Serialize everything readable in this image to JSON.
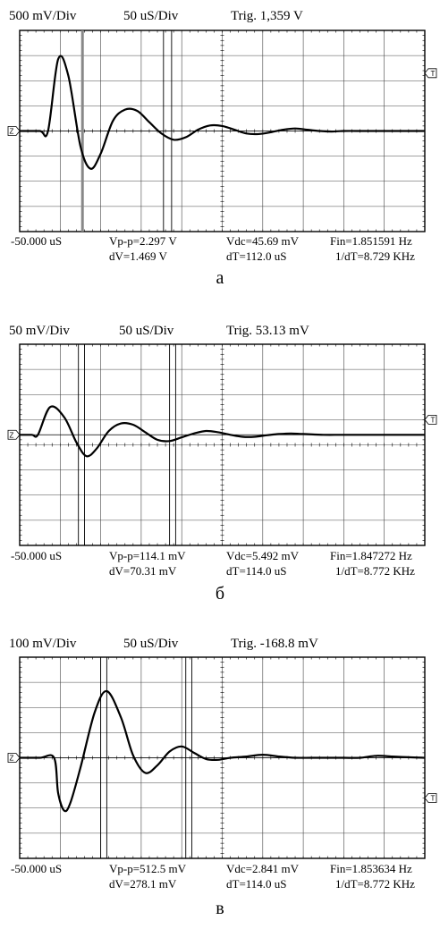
{
  "panels": [
    {
      "id": "a",
      "letter": "а",
      "volts_div": "500 mV/Div",
      "time_div": "50 uS/Div",
      "trig": "Trig. 1,359 V",
      "offset": "-50.000 uS",
      "vpp": "Vp-p=2.297 V",
      "dv": "dV=1.469 V",
      "vdc": "Vdc=45.69 mV",
      "dt": "dT=112.0 uS",
      "fin": "Fin=1.851591 Hz",
      "inv_dt": "1/dT=8.729 KHz",
      "ground_marker": "Z",
      "trigger_marker": "T",
      "divisions_x": 10,
      "divisions_y": 8,
      "zero_div": 4,
      "trigger_div": 1.7,
      "cursors_x_div": [
        1.55,
        3.55,
        3.75
      ]
    },
    {
      "id": "b",
      "letter": "б",
      "volts_div": "50 mV/Div",
      "time_div": "50 uS/Div",
      "trig": "Trig. 53.13 mV",
      "offset": "-50.000 uS",
      "vpp": "Vp-p=114.1 mV",
      "dv": "dV=70.31 mV",
      "vdc": "Vdc=5.492 mV",
      "dt": "dT=114.0 uS",
      "fin": "Fin=1.847272 Hz",
      "inv_dt": "1/dT=8.772 KHz",
      "ground_marker": "Z",
      "trigger_marker": "T",
      "divisions_x": 10,
      "divisions_y": 8,
      "zero_div": 3.6,
      "trigger_div": 3.0,
      "cursors_x_div": [
        1.45,
        1.6,
        3.7,
        3.85
      ]
    },
    {
      "id": "c",
      "letter": "в",
      "volts_div": "100 mV/Div",
      "time_div": "50 uS/Div",
      "trig": "Trig. -168.8 mV",
      "offset": "-50.000 uS",
      "vpp": "Vp-p=512.5 mV",
      "dv": "dV=278.1 mV",
      "vdc": "Vdc=2.841 mV",
      "dt": "dT=114.0 uS",
      "fin": "Fin=1.853634 Hz",
      "inv_dt": "1/dT=8.772 KHz",
      "ground_marker": "Z",
      "trigger_marker": "T",
      "divisions_x": 10,
      "divisions_y": 8,
      "zero_div": 4,
      "trigger_div": 5.6,
      "cursors_x_div": [
        2.0,
        2.15,
        4.1,
        4.25
      ]
    }
  ],
  "chart_data": [
    {
      "type": "line",
      "x_unit": "div",
      "y_unit": "div",
      "xlim": [
        0,
        10
      ],
      "ylim": [
        -4,
        4
      ],
      "grid": true,
      "series": [
        {
          "x": [
            0,
            0.5,
            0.7,
            0.95,
            1.2,
            1.5,
            1.75,
            2.0,
            2.3,
            2.6,
            2.9,
            3.2,
            3.5,
            3.8,
            4.1,
            4.4,
            4.7,
            5.0,
            5.3,
            5.6,
            5.9,
            6.2,
            6.5,
            6.8,
            7.1,
            7.4,
            7.7,
            8.0,
            8.5,
            9.0,
            9.5,
            10
          ],
          "y": [
            0,
            0,
            0,
            2.85,
            2.2,
            -0.6,
            -1.5,
            -0.9,
            0.4,
            0.85,
            0.8,
            0.35,
            -0.1,
            -0.35,
            -0.25,
            0.05,
            0.22,
            0.2,
            0.05,
            -0.1,
            -0.12,
            -0.05,
            0.05,
            0.1,
            0.05,
            0,
            -0.02,
            0,
            0,
            0,
            0,
            0
          ]
        }
      ]
    },
    {
      "type": "line",
      "x_unit": "div",
      "y_unit": "div",
      "xlim": [
        0,
        10
      ],
      "ylim": [
        -4,
        4
      ],
      "grid": true,
      "series": [
        {
          "x": [
            0,
            0.3,
            0.45,
            0.75,
            1.1,
            1.4,
            1.65,
            1.9,
            2.2,
            2.5,
            2.8,
            3.1,
            3.4,
            3.7,
            4.0,
            4.3,
            4.6,
            4.9,
            5.2,
            5.5,
            5.8,
            6.1,
            6.4,
            6.7,
            7.0,
            7.5,
            8.0,
            9.0,
            10
          ],
          "y": [
            0,
            0,
            0,
            1.1,
            0.7,
            -0.3,
            -0.85,
            -0.55,
            0.15,
            0.45,
            0.4,
            0.1,
            -0.2,
            -0.25,
            -0.1,
            0.05,
            0.15,
            0.1,
            0.0,
            -0.08,
            -0.08,
            -0.02,
            0.03,
            0.05,
            0.03,
            0,
            0,
            0,
            0
          ]
        }
      ]
    },
    {
      "type": "line",
      "x_unit": "div",
      "y_unit": "div",
      "xlim": [
        0,
        10
      ],
      "ylim": [
        -4,
        4
      ],
      "grid": true,
      "series": [
        {
          "x": [
            0,
            0.5,
            0.85,
            0.95,
            1.1,
            1.25,
            1.5,
            1.85,
            2.15,
            2.5,
            2.8,
            3.1,
            3.4,
            3.7,
            4.0,
            4.3,
            4.6,
            4.9,
            5.2,
            5.6,
            6.0,
            6.4,
            6.8,
            7.2,
            7.6,
            8.0,
            8.4,
            8.8,
            9.2,
            9.6,
            10
          ],
          "y": [
            0,
            0,
            0,
            -1.4,
            -2.1,
            -1.8,
            -0.4,
            1.8,
            2.65,
            1.6,
            0.1,
            -0.6,
            -0.3,
            0.25,
            0.45,
            0.2,
            -0.05,
            -0.08,
            0,
            0.05,
            0.12,
            0.05,
            0,
            0,
            0,
            0,
            0,
            0.08,
            0.05,
            0.02,
            0
          ]
        }
      ]
    }
  ]
}
